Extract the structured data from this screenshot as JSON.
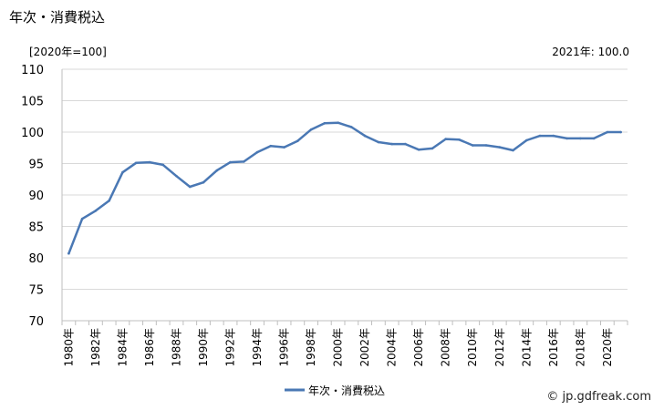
{
  "page": {
    "title": "年次・消費税込",
    "unit_note": "[2020年=100]",
    "latest_note": "2021年: 100.0",
    "credit": "© jp.gdfreak.com"
  },
  "chart_data": {
    "type": "line",
    "title": "年次・消費税込",
    "xlabel": "",
    "ylabel": "",
    "ylim": [
      70,
      110
    ],
    "yticks": [
      70,
      75,
      80,
      85,
      90,
      95,
      100,
      105,
      110
    ],
    "grid": true,
    "legend_position": "bottom-center",
    "line_color": "#4a78b4",
    "x": [
      "1980年",
      "1981年",
      "1982年",
      "1983年",
      "1984年",
      "1985年",
      "1986年",
      "1987年",
      "1988年",
      "1989年",
      "1990年",
      "1991年",
      "1992年",
      "1993年",
      "1994年",
      "1995年",
      "1996年",
      "1997年",
      "1998年",
      "1999年",
      "2000年",
      "2001年",
      "2002年",
      "2003年",
      "2004年",
      "2005年",
      "2006年",
      "2007年",
      "2008年",
      "2009年",
      "2010年",
      "2011年",
      "2012年",
      "2013年",
      "2014年",
      "2015年",
      "2016年",
      "2017年",
      "2018年",
      "2019年",
      "2020年",
      "2021年"
    ],
    "xtick_labels": [
      "1980年",
      "1982年",
      "1984年",
      "1986年",
      "1988年",
      "1990年",
      "1992年",
      "1994年",
      "1996年",
      "1998年",
      "2000年",
      "2002年",
      "2004年",
      "2006年",
      "2008年",
      "2010年",
      "2012年",
      "2014年",
      "2016年",
      "2018年",
      "2020年"
    ],
    "series": [
      {
        "name": "年次・消費税込",
        "values": [
          80.7,
          86.2,
          87.5,
          89.1,
          93.6,
          95.1,
          95.2,
          94.8,
          93.0,
          91.3,
          92.0,
          93.9,
          95.2,
          95.3,
          96.8,
          97.8,
          97.6,
          98.6,
          100.4,
          101.4,
          101.5,
          100.8,
          99.4,
          98.4,
          98.1,
          98.1,
          97.2,
          97.4,
          98.9,
          98.8,
          97.9,
          97.9,
          97.6,
          97.1,
          98.7,
          99.4,
          99.4,
          99.0,
          99.0,
          99.0,
          100.0,
          100.0
        ]
      }
    ]
  }
}
